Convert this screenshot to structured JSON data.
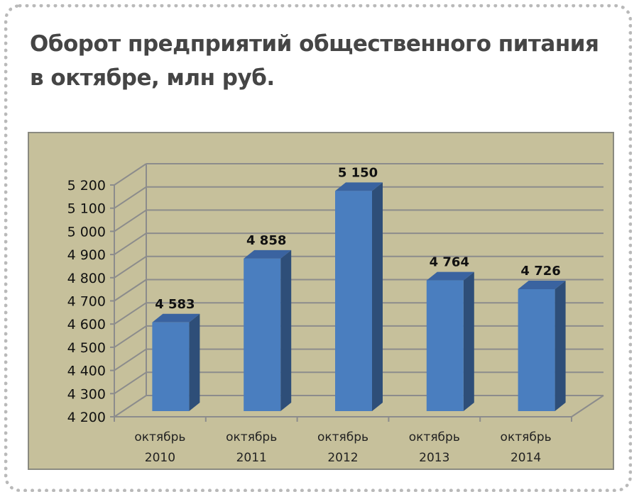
{
  "chart_data": {
    "type": "bar",
    "title_lines": [
      "Оборот предприятий общественного питания",
      "в октябре, млн руб."
    ],
    "categories": [
      [
        "октябрь",
        "2010"
      ],
      [
        "октябрь",
        "2011"
      ],
      [
        "октябрь",
        "2012"
      ],
      [
        "октябрь",
        "2013"
      ],
      [
        "октябрь",
        "2014"
      ]
    ],
    "values": [
      4583,
      4858,
      5150,
      4764,
      4726
    ],
    "data_labels": [
      "4 583",
      "4 858",
      "5 150",
      "4 764",
      "4 726"
    ],
    "ylim": [
      4200,
      5200
    ],
    "yticks": [
      4200,
      4300,
      4400,
      4500,
      4600,
      4700,
      4800,
      4900,
      5000,
      5100,
      5200
    ],
    "ytick_labels": [
      "4 200",
      "4 300",
      "4 400",
      "4 500",
      "4 600",
      "4 700",
      "4 800",
      "4 900",
      "5 000",
      "5 100",
      "5 200"
    ],
    "grid": true,
    "style": "3d-column",
    "colors": {
      "bar_front": "#4a7ebf",
      "bar_side": "#2e4e78",
      "bar_top": "#3a63a0",
      "plot_bg": "#c6c09b",
      "grid": "#8c8c8c"
    }
  }
}
